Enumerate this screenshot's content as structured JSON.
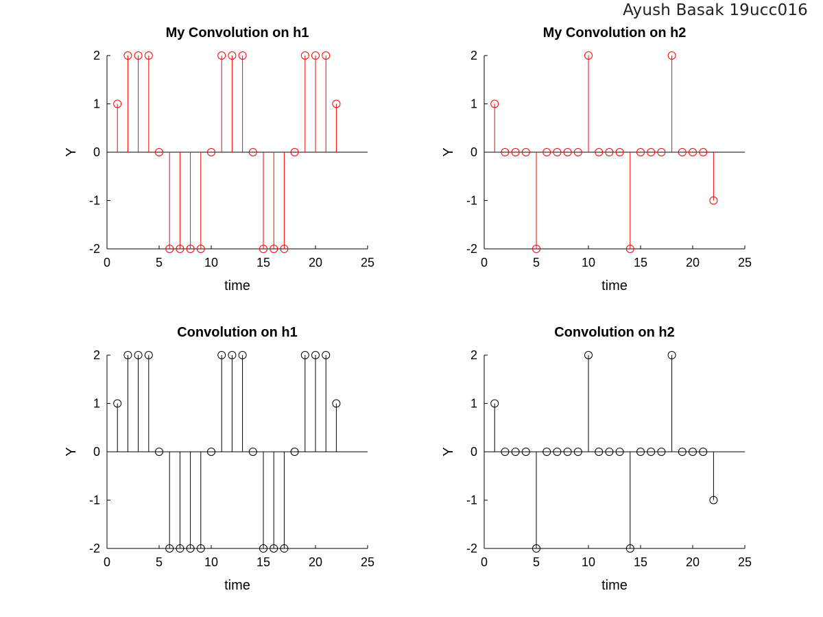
{
  "watermark": "Ayush Basak 19ucc016",
  "chart_data": [
    {
      "type": "stem",
      "title": "My Convolution on h1",
      "xlabel": "time",
      "ylabel": "Y",
      "xlim": [
        0,
        25
      ],
      "ylim": [
        -2,
        2
      ],
      "xticks": [
        0,
        5,
        10,
        15,
        20,
        25
      ],
      "yticks": [
        -2,
        -1,
        0,
        1,
        2
      ],
      "color": "#ff0000",
      "x": [
        1,
        2,
        3,
        4,
        5,
        6,
        7,
        8,
        9,
        10,
        11,
        12,
        13,
        14,
        15,
        16,
        17,
        18,
        19,
        20,
        21,
        22
      ],
      "y": [
        1,
        2,
        2,
        2,
        0,
        -2,
        -2,
        -2,
        -2,
        0,
        2,
        2,
        2,
        0,
        -2,
        -2,
        -2,
        0,
        2,
        2,
        2,
        1
      ]
    },
    {
      "type": "stem",
      "title": "My Convolution on h2",
      "xlabel": "time",
      "ylabel": "Y",
      "xlim": [
        0,
        25
      ],
      "ylim": [
        -2,
        2
      ],
      "xticks": [
        0,
        5,
        10,
        15,
        20,
        25
      ],
      "yticks": [
        -2,
        -1,
        0,
        1,
        2
      ],
      "color": "#ff0000",
      "x": [
        1,
        2,
        3,
        4,
        5,
        6,
        7,
        8,
        9,
        10,
        11,
        12,
        13,
        14,
        15,
        16,
        17,
        18,
        19,
        20,
        21,
        22
      ],
      "y": [
        1,
        0,
        0,
        0,
        -2,
        0,
        0,
        0,
        0,
        2,
        0,
        0,
        0,
        -2,
        0,
        0,
        0,
        2,
        0,
        0,
        0,
        -1
      ]
    },
    {
      "type": "stem",
      "title": "Convolution on h1",
      "xlabel": "time",
      "ylabel": "Y",
      "xlim": [
        0,
        25
      ],
      "ylim": [
        -2,
        2
      ],
      "xticks": [
        0,
        5,
        10,
        15,
        20,
        25
      ],
      "yticks": [
        -2,
        -1,
        0,
        1,
        2
      ],
      "color": "#000000",
      "x": [
        1,
        2,
        3,
        4,
        5,
        6,
        7,
        8,
        9,
        10,
        11,
        12,
        13,
        14,
        15,
        16,
        17,
        18,
        19,
        20,
        21,
        22
      ],
      "y": [
        1,
        2,
        2,
        2,
        0,
        -2,
        -2,
        -2,
        -2,
        0,
        2,
        2,
        2,
        0,
        -2,
        -2,
        -2,
        0,
        2,
        2,
        2,
        1
      ]
    },
    {
      "type": "stem",
      "title": "Convolution on h2",
      "xlabel": "time",
      "ylabel": "Y",
      "xlim": [
        0,
        25
      ],
      "ylim": [
        -2,
        2
      ],
      "xticks": [
        0,
        5,
        10,
        15,
        20,
        25
      ],
      "yticks": [
        -2,
        -1,
        0,
        1,
        2
      ],
      "color": "#000000",
      "x": [
        1,
        2,
        3,
        4,
        5,
        6,
        7,
        8,
        9,
        10,
        11,
        12,
        13,
        14,
        15,
        16,
        17,
        18,
        19,
        20,
        21,
        22
      ],
      "y": [
        1,
        0,
        0,
        0,
        -2,
        0,
        0,
        0,
        0,
        2,
        0,
        0,
        0,
        -2,
        0,
        0,
        0,
        2,
        0,
        0,
        0,
        -1
      ]
    }
  ]
}
